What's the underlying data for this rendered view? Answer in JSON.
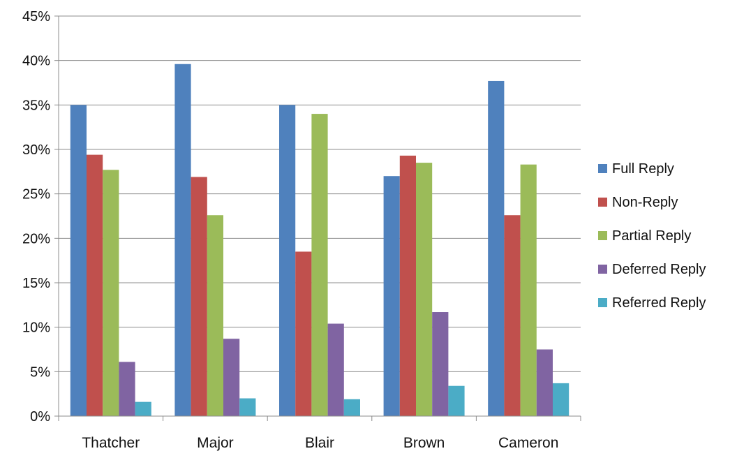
{
  "chart_data": {
    "type": "bar",
    "title": "",
    "xlabel": "",
    "ylabel": "",
    "categories": [
      "Thatcher",
      "Major",
      "Blair",
      "Brown",
      "Cameron"
    ],
    "ylim": [
      0,
      45
    ],
    "ytick_values": [
      0,
      5,
      10,
      15,
      20,
      25,
      30,
      35,
      40,
      45
    ],
    "ytick_labels": [
      "0%",
      "5%",
      "10%",
      "15%",
      "20%",
      "25%",
      "30%",
      "35%",
      "40%",
      "45%"
    ],
    "grid": true,
    "legend_position": "right",
    "series": [
      {
        "name": "Full Reply",
        "color": "#4F81BD",
        "values": [
          35.0,
          39.6,
          35.0,
          27.0,
          37.7
        ]
      },
      {
        "name": "Non-Reply",
        "color": "#C0504D",
        "values": [
          29.4,
          26.9,
          18.5,
          29.3,
          22.6
        ]
      },
      {
        "name": "Partial Reply",
        "color": "#9BBB59",
        "values": [
          27.7,
          22.6,
          34.0,
          28.5,
          28.3
        ]
      },
      {
        "name": "Deferred Reply",
        "color": "#8064A2",
        "values": [
          6.1,
          8.7,
          10.4,
          11.7,
          7.5
        ]
      },
      {
        "name": "Referred Reply",
        "color": "#4BACC6",
        "values": [
          1.6,
          2.0,
          1.9,
          3.4,
          3.7
        ]
      }
    ]
  }
}
